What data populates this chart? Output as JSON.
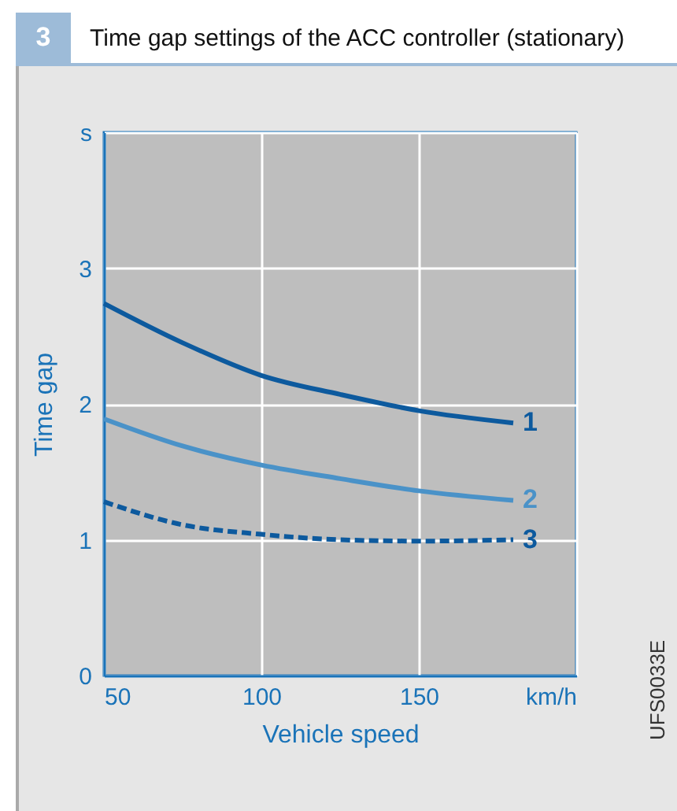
{
  "chart_data": {
    "type": "line",
    "title": "Time gap settings of the ACC controller (stationary)",
    "xlabel": "Vehicle speed",
    "ylabel": "Time gap",
    "annotations": [
      "3",
      "UFS0033E"
    ],
    "x": [
      50,
      75,
      100,
      125,
      150,
      180
    ],
    "series": [
      {
        "name": "1",
        "color": "#0d5a9e",
        "values": [
          2.74,
          2.45,
          2.21,
          2.07,
          1.95,
          1.86
        ]
      },
      {
        "name": "2",
        "color": "#4a92c8",
        "values": [
          1.89,
          1.69,
          1.55,
          1.45,
          1.36,
          1.29
        ]
      },
      {
        "name": "3",
        "color": "#0d5a9e",
        "line_style": "dashed",
        "values": [
          1.28,
          1.11,
          1.04,
          1.0,
          0.99,
          1.0
        ]
      }
    ],
    "xlim": [
      50,
      200
    ],
    "xticks": [
      50,
      100,
      150,
      {
        "value": 200,
        "label": "km/h"
      }
    ],
    "ylim": [
      0,
      4
    ],
    "yticks": [
      0,
      1,
      2,
      3,
      {
        "value": 4,
        "label": "s"
      }
    ],
    "grid": true,
    "legend": false,
    "marker": "none"
  }
}
